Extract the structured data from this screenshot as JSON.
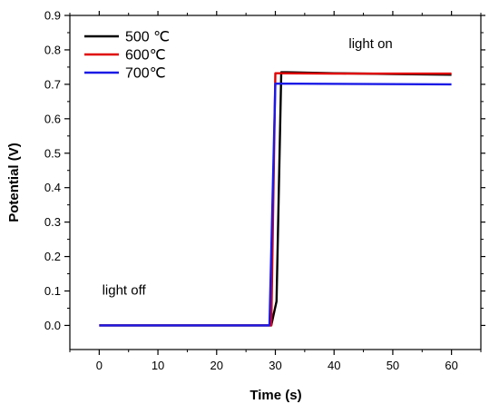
{
  "chart_data": {
    "type": "line",
    "title": "",
    "xlabel": "Time (s)",
    "ylabel": "Potential (V)",
    "xlim": [
      -5,
      65
    ],
    "ylim": [
      -0.07,
      0.9
    ],
    "xticks": [
      0,
      10,
      20,
      30,
      40,
      50,
      60
    ],
    "xtick_labels": [
      "0",
      "10",
      "20",
      "30",
      "40",
      "50",
      "60"
    ],
    "yticks": [
      0.0,
      0.1,
      0.2,
      0.3,
      0.4,
      0.5,
      0.6,
      0.7,
      0.8,
      0.9
    ],
    "ytick_labels": [
      "0.0",
      "0.1",
      "0.2",
      "0.3",
      "0.4",
      "0.5",
      "0.6",
      "0.7",
      "0.8",
      "0.9"
    ],
    "grid": false,
    "legend_position": "top-left",
    "series": [
      {
        "name": "500 ℃",
        "color": "#000000",
        "x": [
          0,
          29.3,
          30.2,
          31.0,
          32,
          40,
          50,
          60
        ],
        "y": [
          0.0,
          0.0,
          0.07,
          0.735,
          0.735,
          0.732,
          0.73,
          0.728
        ]
      },
      {
        "name": "600℃",
        "color": "#e00000",
        "x": [
          0,
          29.3,
          30.0,
          31,
          40,
          50,
          60
        ],
        "y": [
          0.0,
          0.0,
          0.732,
          0.732,
          0.731,
          0.731,
          0.731
        ]
      },
      {
        "name": "700℃",
        "color": "#1a1ae6",
        "x": [
          0,
          29.0,
          30.0,
          60
        ],
        "y": [
          0.0,
          0.0,
          0.702,
          0.7
        ]
      }
    ],
    "annotations": [
      {
        "text": "light on",
        "x": 42.5,
        "y": 0.805
      },
      {
        "text": "light off",
        "x": 0.5,
        "y": 0.09
      }
    ]
  }
}
